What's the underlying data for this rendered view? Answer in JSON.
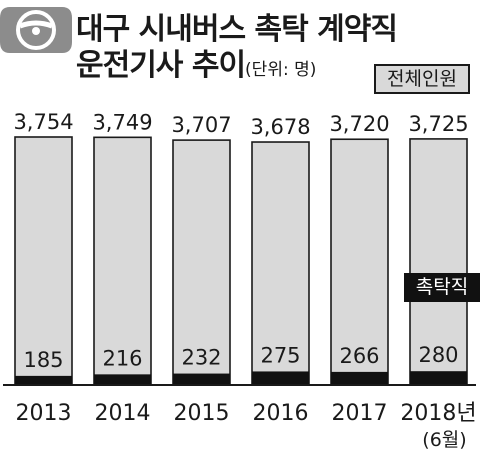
{
  "header": {
    "title_line1": "대구 시내버스 촉탁 계약직",
    "title_line2": "운전기사 추이",
    "unit": "(단위: 명)"
  },
  "chart_data": {
    "type": "bar",
    "title": "대구 시내버스 촉탁 계약직 운전기사 추이",
    "unit": "(단위: 명)",
    "categories": [
      "2013",
      "2014",
      "2015",
      "2016",
      "2017",
      "2018년"
    ],
    "category_notes": [
      "",
      "",
      "",
      "",
      "",
      "(6월)"
    ],
    "series": [
      {
        "name": "전체인원",
        "values": [
          3754,
          3749,
          3707,
          3678,
          3720,
          3725
        ],
        "labels": [
          "3,754",
          "3,749",
          "3,707",
          "3,678",
          "3,720",
          "3,725"
        ]
      },
      {
        "name": "촉탁직",
        "values": [
          185,
          216,
          232,
          275,
          266,
          280
        ],
        "labels": [
          "185",
          "216",
          "232",
          "275",
          "266",
          "280"
        ]
      }
    ],
    "legend": [
      "전체인원",
      "촉탁직"
    ],
    "overlay": true,
    "grid": false,
    "colors": {
      "total": "#d9d9d9",
      "contract": "#111111",
      "stroke": "#1a1a1a",
      "text": "#1a1a1a"
    }
  }
}
